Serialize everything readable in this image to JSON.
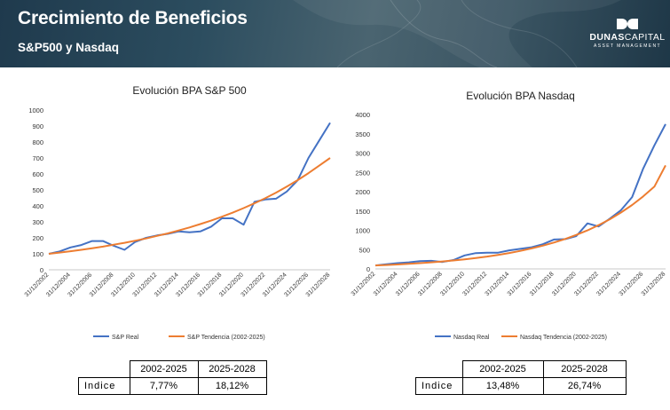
{
  "header": {
    "title": "Crecimiento de Beneficios",
    "subtitle": "S&P500 y Nasdaq",
    "logo_name_bold": "DUNAS",
    "logo_name_light": "CAPITAL",
    "logo_tagline": "ASSET MANAGEMENT",
    "background_color": "#2c4d5f"
  },
  "chart_data": [
    {
      "type": "line",
      "title": "Evolución BPA S&P 500",
      "x": [
        "31/12/2002",
        "31/12/2003",
        "31/12/2004",
        "31/12/2005",
        "31/12/2006",
        "31/12/2007",
        "31/12/2008",
        "31/12/2009",
        "31/12/2010",
        "31/12/2011",
        "31/12/2012",
        "31/12/2013",
        "31/12/2014",
        "31/12/2015",
        "31/12/2016",
        "31/12/2017",
        "31/12/2018",
        "31/12/2019",
        "31/12/2020",
        "31/12/2021",
        "31/12/2022",
        "31/12/2023",
        "31/12/2024",
        "31/12/2025",
        "31/12/2026",
        "31/12/2027",
        "31/12/2028"
      ],
      "x_tick_labels": [
        "31/12/2002",
        "31/12/2004",
        "31/12/2006",
        "31/12/2008",
        "31/12/2010",
        "31/12/2012",
        "31/12/2014",
        "31/12/2016",
        "31/12/2018",
        "31/12/2020",
        "31/12/2022",
        "31/12/2024",
        "31/12/2026",
        "31/12/2028"
      ],
      "ylim": [
        0,
        1000
      ],
      "yticks": [
        0,
        100,
        200,
        300,
        400,
        500,
        600,
        700,
        800,
        900,
        1000
      ],
      "grid": false,
      "legend_position": "bottom",
      "series": [
        {
          "name": "S&P Real",
          "color": "#4472c4",
          "values": [
            100,
            115,
            140,
            155,
            180,
            180,
            150,
            125,
            175,
            200,
            215,
            225,
            240,
            235,
            240,
            270,
            322,
            322,
            282,
            425,
            440,
            445,
            490,
            560,
            700,
            810,
            920
          ]
        },
        {
          "name": "S&P Tendencia (2002-2025)",
          "color": "#ed7d31",
          "values": [
            100,
            108,
            116,
            125,
            135,
            145,
            157,
            169,
            182,
            196,
            212,
            228,
            246,
            265,
            286,
            308,
            332,
            358,
            386,
            416,
            448,
            483,
            521,
            561,
            605,
            652,
            700
          ]
        }
      ]
    },
    {
      "type": "line",
      "title": "Evolución BPA Nasdaq",
      "x": [
        "31/12/2002",
        "31/12/2003",
        "31/12/2004",
        "31/12/2005",
        "31/12/2006",
        "31/12/2007",
        "31/12/2008",
        "31/12/2009",
        "31/12/2010",
        "31/12/2011",
        "31/12/2012",
        "31/12/2013",
        "31/12/2014",
        "31/12/2015",
        "31/12/2016",
        "31/12/2017",
        "31/12/2018",
        "31/12/2019",
        "31/12/2020",
        "31/12/2021",
        "31/12/2022",
        "31/12/2023",
        "31/12/2024",
        "31/12/2025",
        "31/12/2026",
        "31/12/2027",
        "31/12/2028"
      ],
      "x_tick_labels": [
        "31/12/2002",
        "31/12/2004",
        "31/12/2006",
        "31/12/2008",
        "31/12/2010",
        "31/12/2012",
        "31/12/2014",
        "31/12/2016",
        "31/12/2018",
        "31/12/2020",
        "31/12/2022",
        "31/12/2024",
        "31/12/2026",
        "31/12/2028"
      ],
      "ylim": [
        0,
        4000
      ],
      "yticks": [
        0,
        500,
        1000,
        1500,
        2000,
        2500,
        3000,
        3500,
        4000
      ],
      "grid": false,
      "legend_position": "bottom",
      "series": [
        {
          "name": "Nasdaq Real",
          "color": "#4472c4",
          "values": [
            90,
            120,
            150,
            170,
            200,
            210,
            180,
            230,
            350,
            410,
            420,
            420,
            480,
            520,
            560,
            640,
            760,
            770,
            850,
            1180,
            1100,
            1300,
            1520,
            1860,
            2600,
            3200,
            3750
          ]
        },
        {
          "name": "Nasdaq Tendencia (2002-2025)",
          "color": "#ed7d31",
          "values": [
            90,
            102,
            116,
            132,
            150,
            170,
            193,
            219,
            248,
            282,
            320,
            363,
            412,
            467,
            530,
            602,
            683,
            775,
            880,
            998,
            1133,
            1285,
            1459,
            1655,
            1878,
            2131,
            2680
          ]
        }
      ]
    }
  ],
  "tables": [
    {
      "headers": [
        "2002-2025",
        "2025-2028"
      ],
      "row_label": "Indice",
      "values": [
        "7,77%",
        "18,12%"
      ]
    },
    {
      "headers": [
        "2002-2025",
        "2025-2028"
      ],
      "row_label": "Indice",
      "values": [
        "13,48%",
        "26,74%"
      ]
    }
  ]
}
